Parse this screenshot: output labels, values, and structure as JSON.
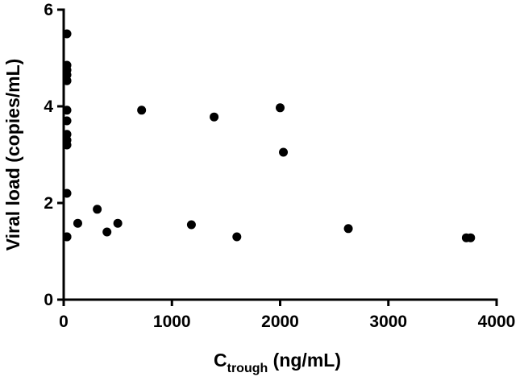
{
  "chart_data": {
    "type": "scatter",
    "title": "",
    "xlabel": {
      "main": "C",
      "subscript": "trough",
      "suffix": " (ng/mL)"
    },
    "ylabel": "Viral load (copies/mL)",
    "xlim": [
      0,
      4000
    ],
    "ylim": [
      0,
      6
    ],
    "xticks": [
      "0",
      "1000",
      "2000",
      "3000",
      "4000"
    ],
    "yticks": [
      "0",
      "2",
      "4",
      "6"
    ],
    "grid": false,
    "legend": "none",
    "marker_color": "#000000",
    "x": [
      30,
      30,
      30,
      30,
      30,
      30,
      30,
      30,
      30,
      30,
      30,
      30,
      30,
      130,
      310,
      400,
      500,
      720,
      1180,
      1390,
      1600,
      2000,
      2030,
      2630,
      3720,
      3760
    ],
    "y": [
      5.5,
      4.85,
      4.75,
      4.65,
      4.53,
      3.92,
      3.7,
      3.42,
      3.3,
      3.2,
      2.2,
      1.3,
      1.3,
      1.58,
      1.87,
      1.4,
      1.58,
      3.92,
      1.55,
      3.78,
      1.3,
      3.97,
      3.05,
      1.47,
      1.28,
      1.28
    ]
  }
}
